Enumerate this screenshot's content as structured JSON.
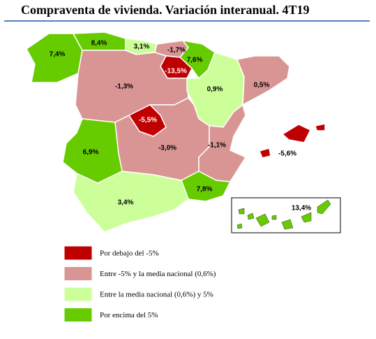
{
  "title": "Compraventa de vivienda. Variación interanual. 4T19",
  "regions": [
    {
      "value": 7.4,
      "label": "7,4%",
      "color": "#66cc00"
    },
    {
      "value": 8.4,
      "label": "8,4%",
      "color": "#66cc00"
    },
    {
      "value": 3.1,
      "label": "3,1%",
      "color": "#ccff99"
    },
    {
      "value": -1.7,
      "label": "-1,7%",
      "color": "#d99594"
    },
    {
      "value": 7.6,
      "label": "7,6%",
      "color": "#66cc00"
    },
    {
      "value": -13.5,
      "label": "-13,5%",
      "color": "#c00000"
    },
    {
      "value": 0.9,
      "label": "0,9%",
      "color": "#ccff99"
    },
    {
      "value": 0.5,
      "label": "0,5%",
      "color": "#d99594"
    },
    {
      "value": -1.3,
      "label": "-1,3%",
      "color": "#d99594"
    },
    {
      "value": -5.5,
      "label": "-5,5%",
      "color": "#c00000"
    },
    {
      "value": -3.0,
      "label": "-3,0%",
      "color": "#d99594"
    },
    {
      "value": -1.1,
      "label": "-1,1%",
      "color": "#d99594"
    },
    {
      "value": -5.6,
      "label": "-5,6%",
      "color": "#c00000"
    },
    {
      "value": 6.9,
      "label": "6,9%",
      "color": "#66cc00"
    },
    {
      "value": 3.4,
      "label": "3,4%",
      "color": "#ccff99"
    },
    {
      "value": 7.8,
      "label": "7,8%",
      "color": "#66cc00"
    },
    {
      "value": 13.4,
      "label": "13,4%",
      "color": "#66cc00"
    }
  ],
  "legend": [
    {
      "label": "Por debajo del -5%",
      "color": "#c00000"
    },
    {
      "label": "Entre -5% y la media nacional (0,6%)",
      "color": "#d99594"
    },
    {
      "label": "Entre la media nacional (0,6%) y 5%",
      "color": "#ccff99"
    },
    {
      "label": "Por encima del 5%",
      "color": "#66cc00"
    }
  ]
}
